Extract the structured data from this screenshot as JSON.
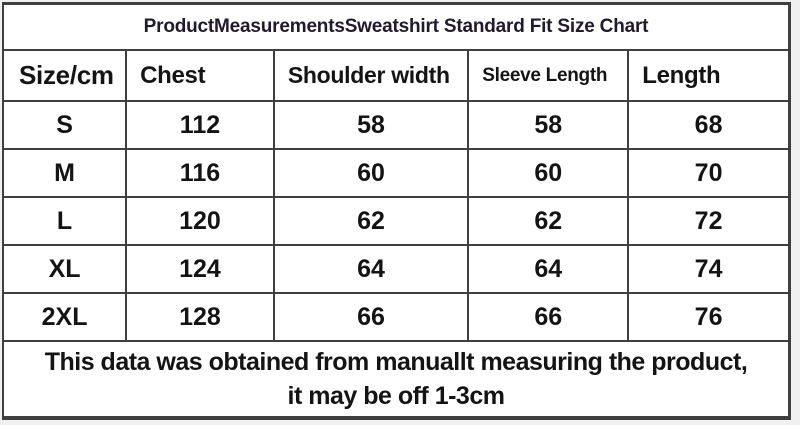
{
  "page": {
    "background": "#f0f0f0"
  },
  "colors": {
    "border": "#3f3f3f",
    "text": "#141414",
    "title_text": "#1f1a2e",
    "cell_background": "#ffffff"
  },
  "chart_data": {
    "type": "table",
    "title": "ProductMeasurementsSweatshirt Standard Fit Size Chart",
    "columns": [
      "Size/cm",
      "Chest",
      "Shoulder width",
      "Sleeve Length",
      "Length"
    ],
    "rows": [
      [
        "S",
        "112",
        "58",
        "58",
        "68"
      ],
      [
        "M",
        "116",
        "60",
        "60",
        "70"
      ],
      [
        "L",
        "120",
        "62",
        "62",
        "72"
      ],
      [
        "XL",
        "124",
        "64",
        "64",
        "74"
      ],
      [
        "2XL",
        "128",
        "66",
        "66",
        "76"
      ]
    ],
    "units": "cm",
    "notes": [
      "This data was obtained from manuallt measuring the product,",
      "it may be off 1-3cm"
    ]
  }
}
